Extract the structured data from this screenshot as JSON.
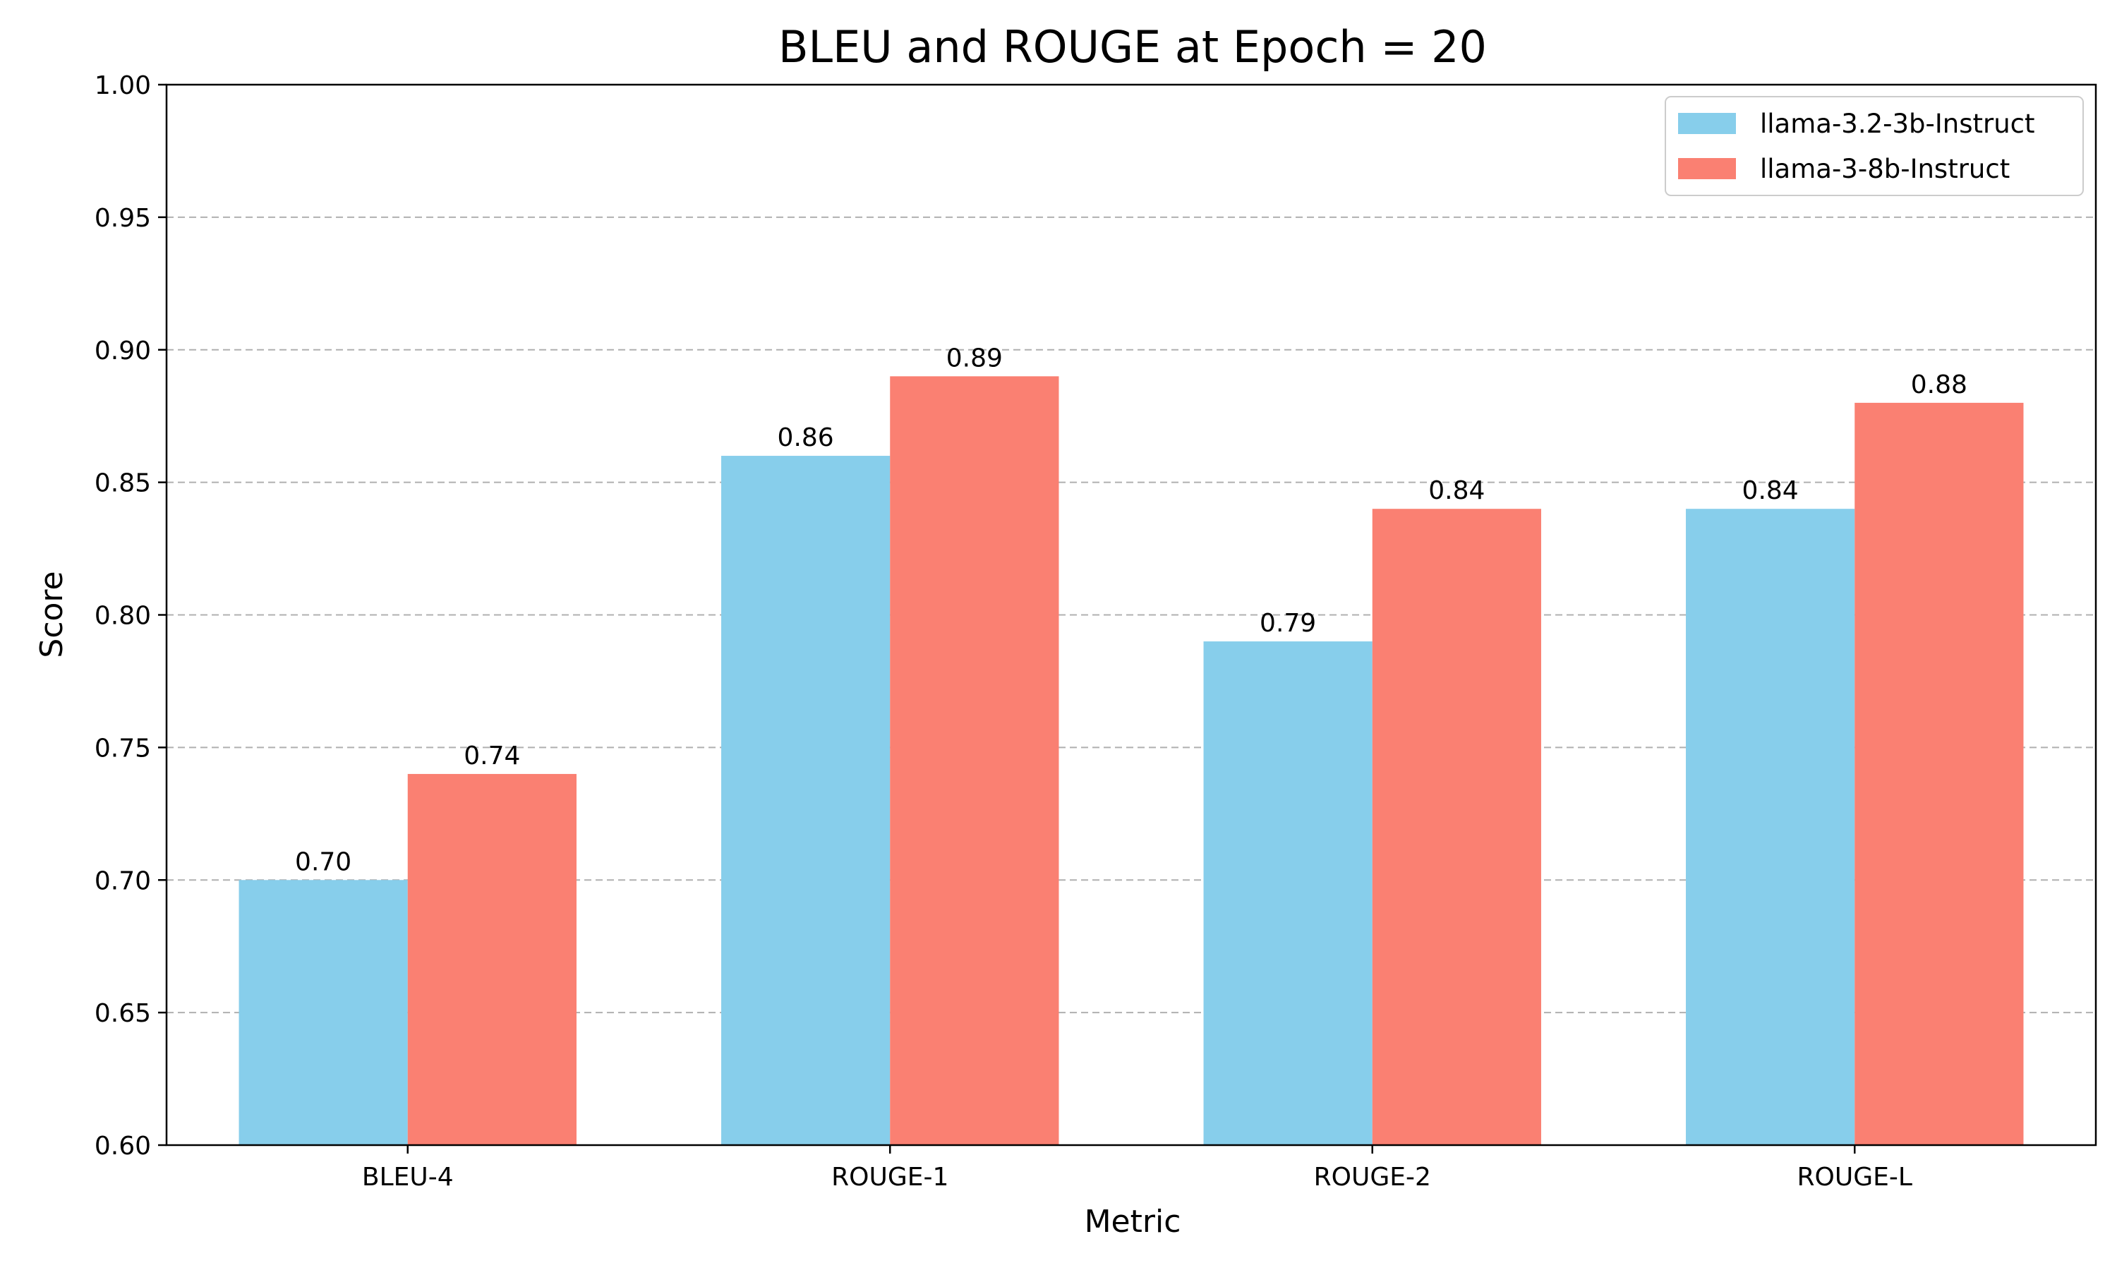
{
  "chart_data": {
    "type": "bar",
    "title": "BLEU and ROUGE at Epoch = 20",
    "xlabel": "Metric",
    "ylabel": "Score",
    "categories": [
      "BLEU-4",
      "ROUGE-1",
      "ROUGE-2",
      "ROUGE-L"
    ],
    "series": [
      {
        "name": "llama-3.2-3b-Instruct",
        "color": "#87CEEB",
        "values": [
          0.7,
          0.86,
          0.79,
          0.84
        ]
      },
      {
        "name": "llama-3-8b-Instruct",
        "color": "#FA8072",
        "values": [
          0.74,
          0.89,
          0.84,
          0.88
        ]
      }
    ],
    "ylim": [
      0.6,
      1.0
    ],
    "yticks": [
      "0.60",
      "0.65",
      "0.70",
      "0.75",
      "0.80",
      "0.85",
      "0.90",
      "0.95",
      "1.00"
    ],
    "grid": "y-axis dashed",
    "legend_position": "top-right",
    "value_label_format": "2 decimals"
  }
}
